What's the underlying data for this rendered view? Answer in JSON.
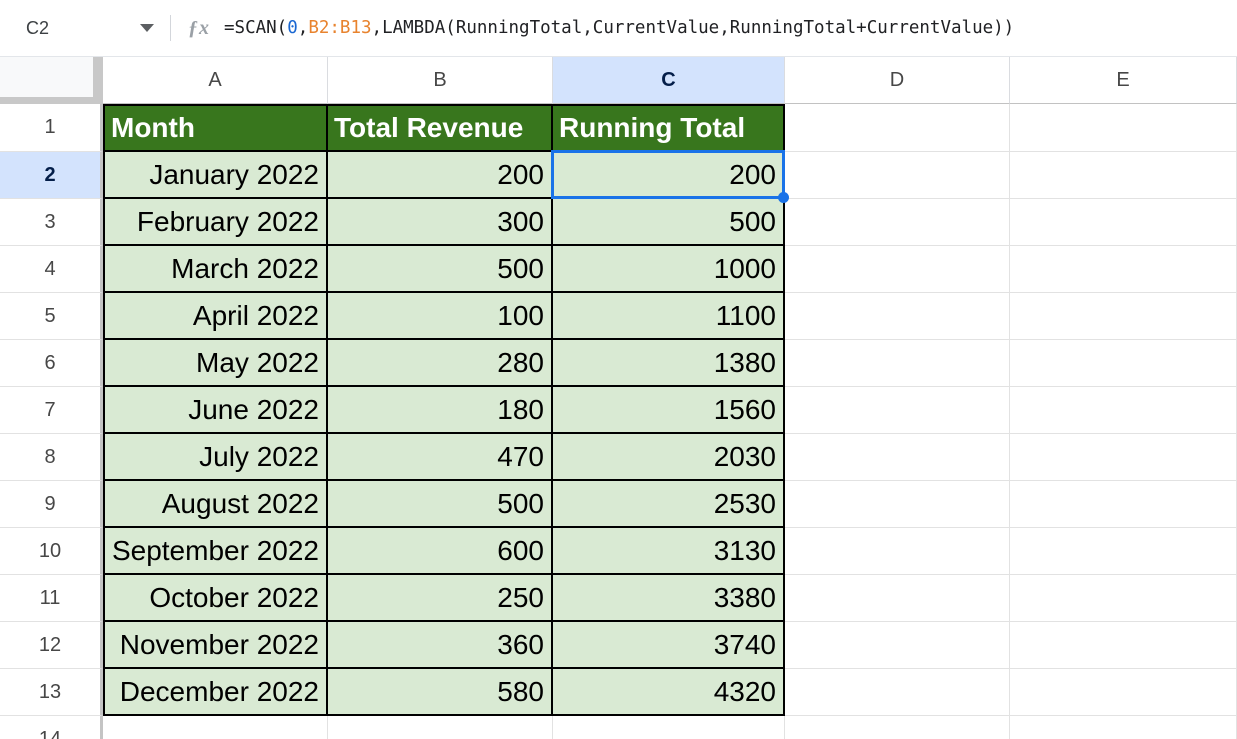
{
  "name_box": {
    "value": "C2"
  },
  "formula_bar": {
    "fx_icon": "fx",
    "parts": {
      "prefix": "=SCAN(",
      "number": "0",
      "comma1": ",",
      "range": "B2:B13",
      "suffix": ",LAMBDA(RunningTotal,CurrentValue,RunningTotal+CurrentValue))"
    }
  },
  "grid": {
    "column_headers": [
      "A",
      "B",
      "C",
      "D",
      "E"
    ],
    "selected_column": "C",
    "selected_row": "2",
    "selected_cell": "C2",
    "table_headers": [
      "Month",
      "Total Revenue",
      "Running Total"
    ],
    "rows": [
      {
        "row_label": "2",
        "month": "January 2022",
        "revenue": 200,
        "running_total": 200
      },
      {
        "row_label": "3",
        "month": "February 2022",
        "revenue": 300,
        "running_total": 500
      },
      {
        "row_label": "4",
        "month": "March 2022",
        "revenue": 500,
        "running_total": 1000
      },
      {
        "row_label": "5",
        "month": "April 2022",
        "revenue": 100,
        "running_total": 1100
      },
      {
        "row_label": "6",
        "month": "May 2022",
        "revenue": 280,
        "running_total": 1380
      },
      {
        "row_label": "7",
        "month": "June 2022",
        "revenue": 180,
        "running_total": 1560
      },
      {
        "row_label": "8",
        "month": "July 2022",
        "revenue": 470,
        "running_total": 2030
      },
      {
        "row_label": "9",
        "month": "August 2022",
        "revenue": 500,
        "running_total": 2530
      },
      {
        "row_label": "10",
        "month": "September 2022",
        "revenue": 600,
        "running_total": 3130
      },
      {
        "row_label": "11",
        "month": "October 2022",
        "revenue": 250,
        "running_total": 3380
      },
      {
        "row_label": "12",
        "month": "November 2022",
        "revenue": 360,
        "running_total": 3740
      },
      {
        "row_label": "13",
        "month": "December 2022",
        "revenue": 580,
        "running_total": 4320
      }
    ],
    "partial_row": {
      "row_label": "14"
    }
  },
  "colors": {
    "table_header_bg": "#38761d",
    "table_cell_bg": "#d9ead3",
    "selected_header_bg": "#d3e3fd",
    "selected_header_text": "#041e49",
    "selection_blue": "#1a73e8",
    "formula_number_blue": "#1967d2",
    "formula_range_orange": "#e8832e"
  }
}
